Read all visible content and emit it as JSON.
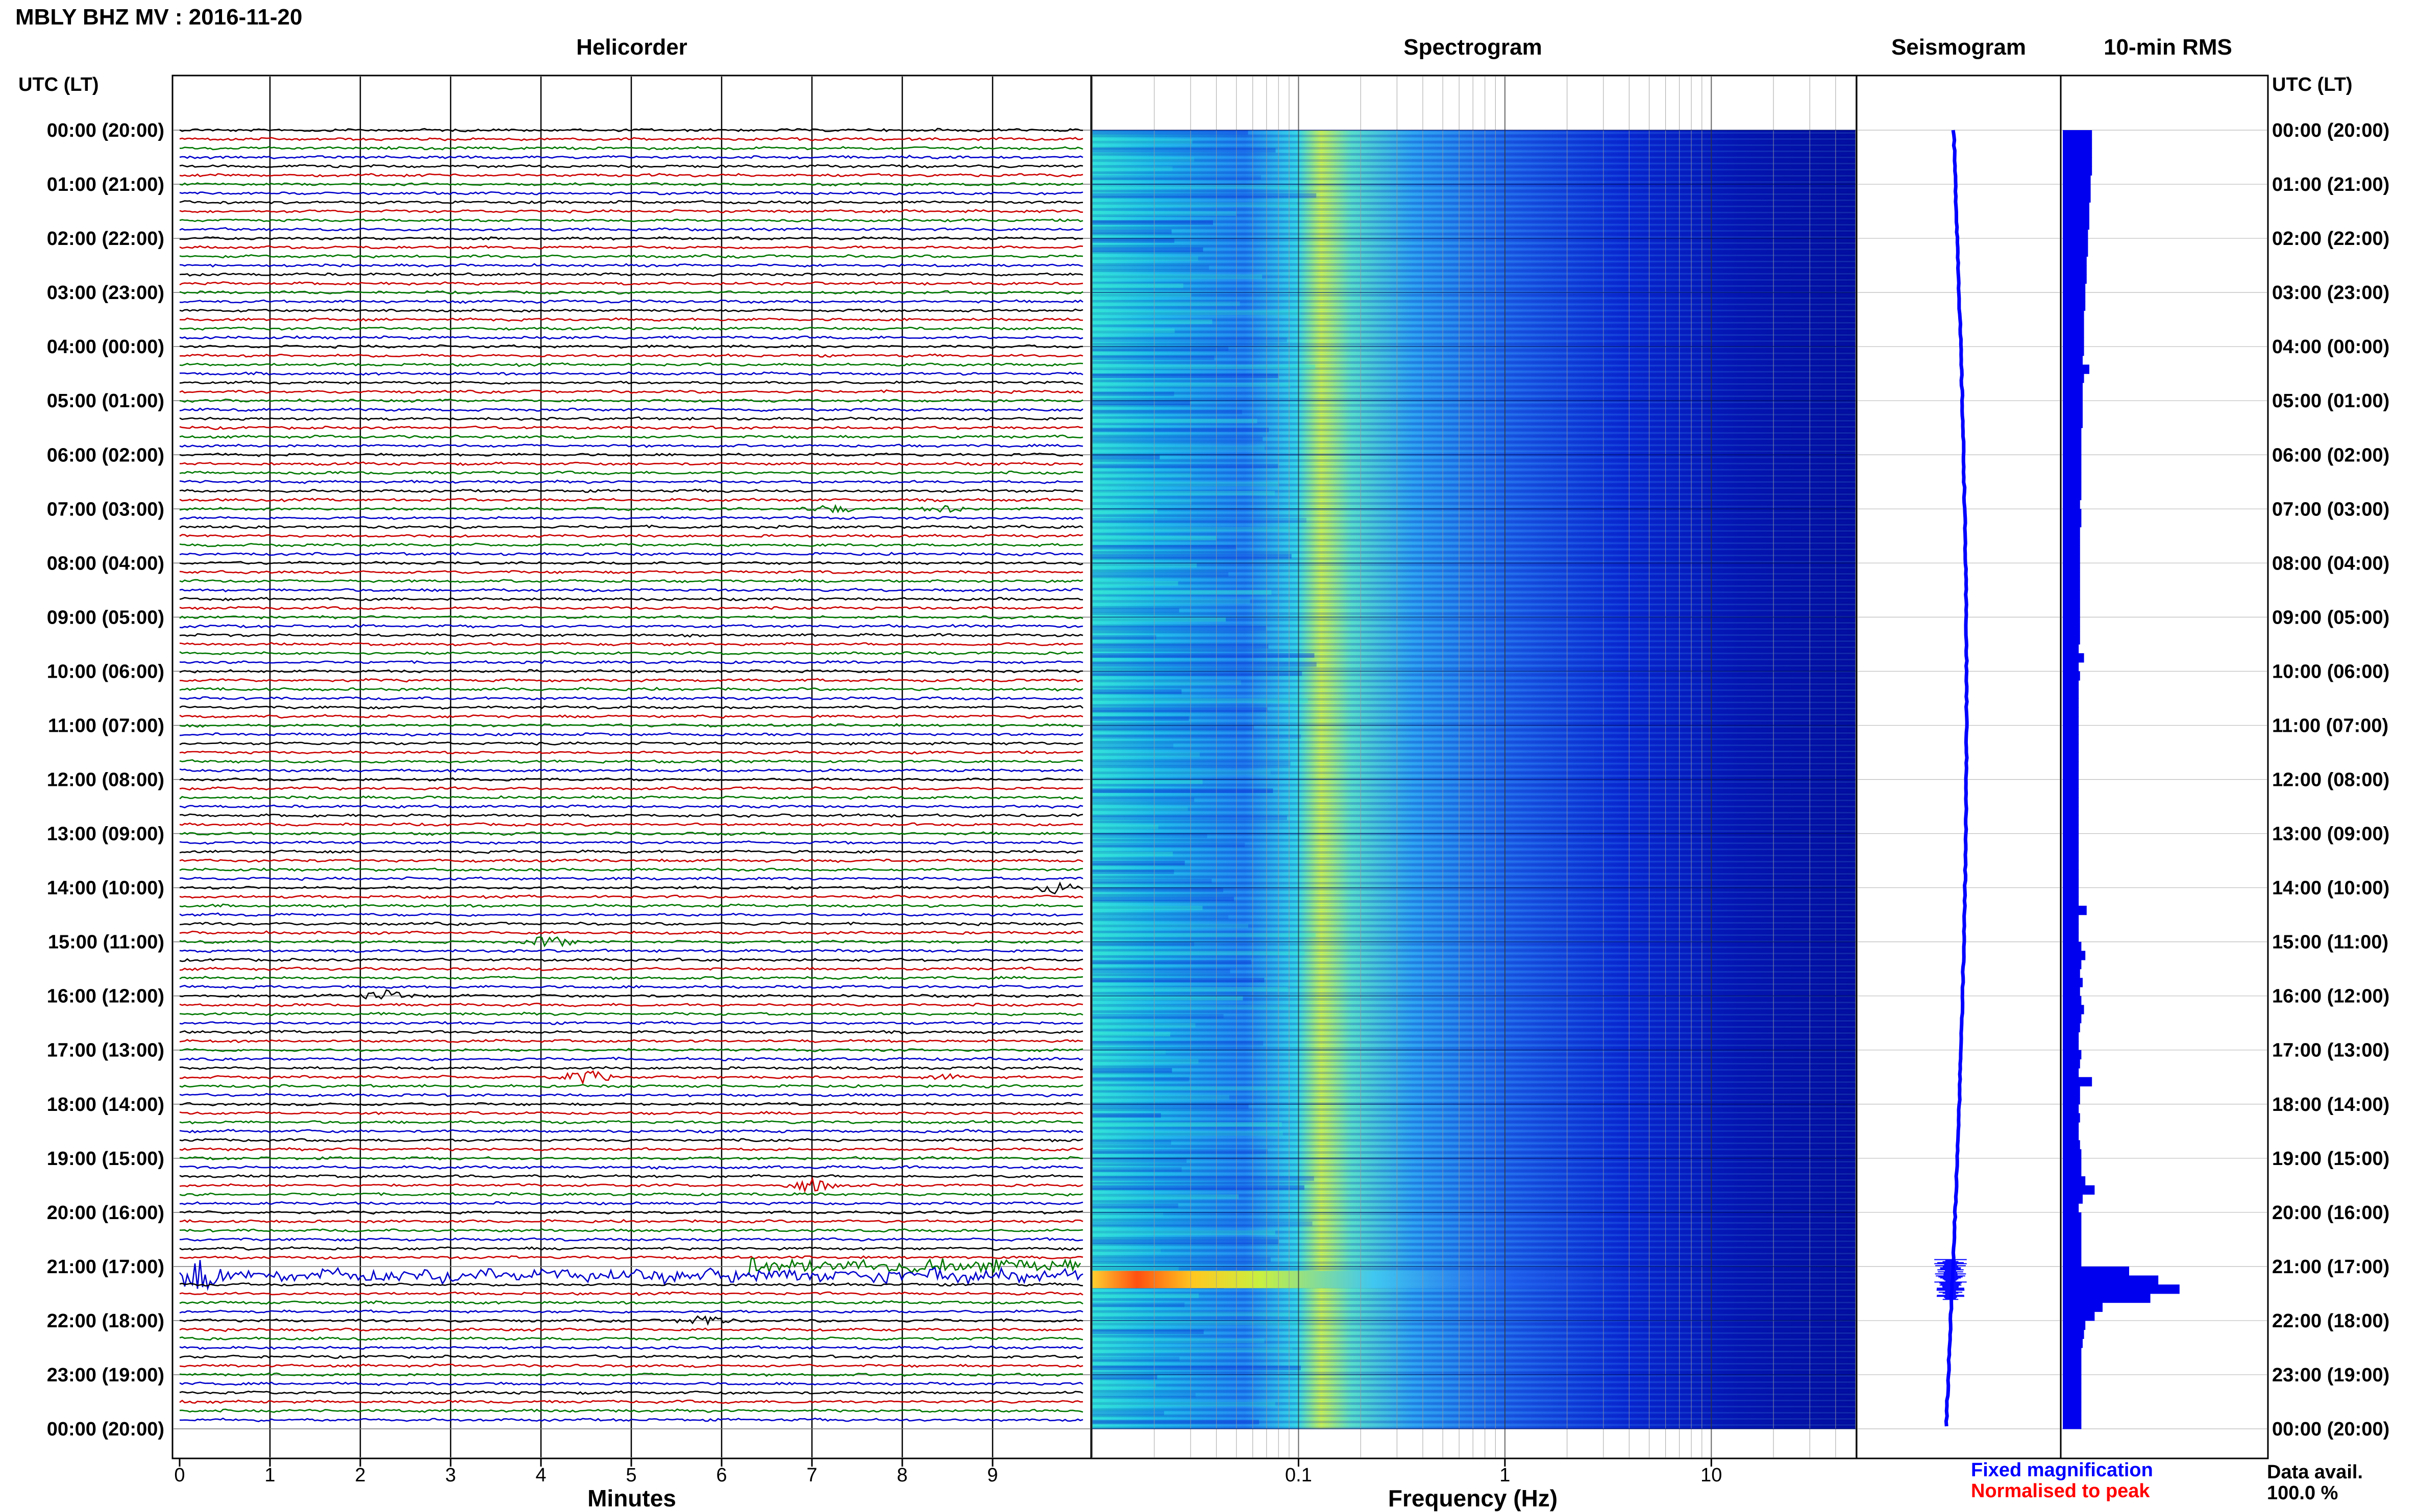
{
  "header": {
    "title": "MBLY BHZ MV : 2016-11-20",
    "utc_label_left": "UTC (LT)",
    "utc_label_right": "UTC (LT)"
  },
  "panels": {
    "helicorder": "Helicorder",
    "spectrogram": "Spectrogram",
    "seismogram": "Seismogram",
    "rms": "10-min RMS"
  },
  "time_labels": [
    "00:00 (20:00)",
    "01:00 (21:00)",
    "02:00 (22:00)",
    "03:00 (23:00)",
    "04:00 (00:00)",
    "05:00 (01:00)",
    "06:00 (02:00)",
    "07:00 (03:00)",
    "08:00 (04:00)",
    "09:00 (05:00)",
    "10:00 (06:00)",
    "11:00 (07:00)",
    "12:00 (08:00)",
    "13:00 (09:00)",
    "14:00 (10:00)",
    "15:00 (11:00)",
    "16:00 (12:00)",
    "17:00 (13:00)",
    "18:00 (14:00)",
    "19:00 (15:00)",
    "20:00 (16:00)",
    "21:00 (17:00)",
    "22:00 (18:00)",
    "23:00 (19:00)",
    "00:00 (20:00)"
  ],
  "footer": {
    "fixed_magnification": "Fixed magnification",
    "normalised_to_peak": "Normalised to peak",
    "data_avail_label": "Data avail.",
    "data_avail_value": "100.0 %"
  },
  "colors": {
    "trace_cycle": [
      "#000000",
      "#cc0000",
      "#007700",
      "#0000cc"
    ],
    "fixed_magnification": "#0000ff",
    "normalised_to_peak": "#ff0000",
    "rms_bar": "#0000ee",
    "seismogram_trace": "#0000ff"
  },
  "chart_data": [
    {
      "type": "line",
      "name": "helicorder",
      "title": "Helicorder",
      "xlabel": "Minutes",
      "x_ticks": [
        0,
        1,
        2,
        3,
        4,
        5,
        6,
        7,
        8,
        9
      ],
      "xlim": [
        0,
        10
      ],
      "rows_per_hour": 6,
      "traces_total": 144,
      "events": [
        {
          "utc": "07:00",
          "row_offset": 0,
          "minute": 7.2,
          "amplitude": 0.3
        },
        {
          "utc": "07:00",
          "row_offset": 0,
          "minute": 8.5,
          "amplitude": 0.3
        },
        {
          "utc": "14:00",
          "row_offset": 0,
          "minute": 9.7,
          "amplitude": 0.5
        },
        {
          "utc": "15:00",
          "row_offset": 0,
          "minute": 4.1,
          "amplitude": 0.5
        },
        {
          "utc": "16:00",
          "row_offset": 0,
          "minute": 2.3,
          "amplitude": 0.5
        },
        {
          "utc": "17:00",
          "row_offset": 3,
          "minute": 4.5,
          "amplitude": 0.6
        },
        {
          "utc": "17:00",
          "row_offset": 3,
          "minute": 8.5,
          "amplitude": 0.2
        },
        {
          "utc": "19:00",
          "row_offset": 3,
          "minute": 7.0,
          "amplitude": 0.6
        },
        {
          "utc": "21:00",
          "row_offset": 0,
          "minute": 6.3,
          "amplitude": 0.4
        },
        {
          "utc": "21:00",
          "row_offset": 1,
          "minute": 0.2,
          "amplitude": 0.9
        },
        {
          "utc": "22:00",
          "row_offset": 0,
          "minute": 5.8,
          "amplitude": 0.5
        }
      ]
    },
    {
      "type": "heatmap",
      "name": "spectrogram",
      "title": "Spectrogram",
      "xlabel": "Frequency (Hz)",
      "x_scale": "log",
      "xlim": [
        0.01,
        50
      ],
      "x_ticks": [
        0.1,
        1,
        10
      ],
      "time_span_hours": 24,
      "notable_band_utc": "21:15"
    },
    {
      "type": "line",
      "name": "seismogram",
      "title": "Seismogram",
      "time_span_hours": 24,
      "burst_utc": "21:15"
    },
    {
      "type": "bar",
      "name": "rms",
      "title": "10-min RMS",
      "xlim": [
        0,
        1
      ],
      "values": [
        0.22,
        0.22,
        0.22,
        0.22,
        0.22,
        0.21,
        0.21,
        0.21,
        0.2,
        0.2,
        0.2,
        0.19,
        0.19,
        0.19,
        0.18,
        0.18,
        0.18,
        0.17,
        0.17,
        0.17,
        0.16,
        0.16,
        0.16,
        0.16,
        0.16,
        0.15,
        0.2,
        0.16,
        0.15,
        0.15,
        0.15,
        0.15,
        0.15,
        0.14,
        0.14,
        0.14,
        0.14,
        0.14,
        0.14,
        0.14,
        0.14,
        0.13,
        0.14,
        0.14,
        0.13,
        0.13,
        0.13,
        0.13,
        0.13,
        0.13,
        0.13,
        0.13,
        0.13,
        0.13,
        0.13,
        0.13,
        0.13,
        0.12,
        0.16,
        0.12,
        0.13,
        0.12,
        0.12,
        0.12,
        0.12,
        0.12,
        0.12,
        0.12,
        0.12,
        0.12,
        0.12,
        0.12,
        0.12,
        0.12,
        0.12,
        0.12,
        0.12,
        0.12,
        0.12,
        0.12,
        0.12,
        0.12,
        0.12,
        0.12,
        0.12,
        0.12,
        0.18,
        0.12,
        0.12,
        0.12,
        0.14,
        0.17,
        0.14,
        0.13,
        0.15,
        0.13,
        0.14,
        0.16,
        0.14,
        0.13,
        0.12,
        0.12,
        0.14,
        0.13,
        0.12,
        0.22,
        0.13,
        0.13,
        0.12,
        0.13,
        0.12,
        0.12,
        0.13,
        0.14,
        0.14,
        0.14,
        0.17,
        0.24,
        0.15,
        0.12,
        0.14,
        0.14,
        0.14,
        0.14,
        0.14,
        0.14,
        0.5,
        0.72,
        0.88,
        0.66,
        0.3,
        0.24,
        0.17,
        0.16,
        0.15,
        0.14,
        0.14,
        0.14,
        0.14,
        0.14,
        0.14,
        0.14,
        0.14,
        0.14
      ]
    }
  ]
}
